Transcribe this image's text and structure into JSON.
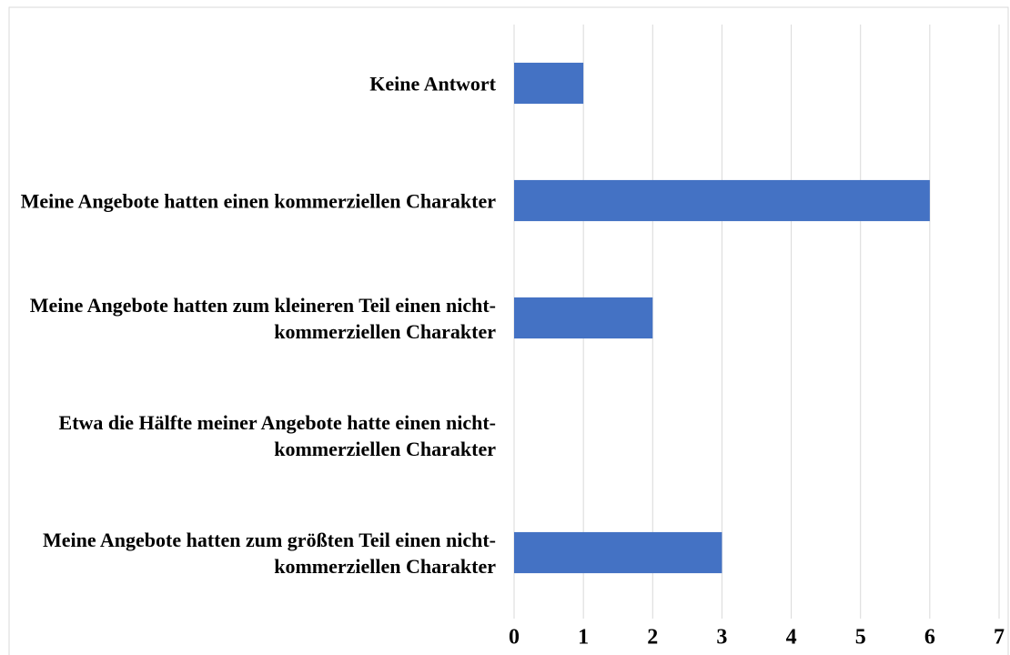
{
  "chart_data": {
    "type": "bar",
    "orientation": "horizontal",
    "categories": [
      "Keine Antwort",
      "Meine Angebote hatten einen kommerziellen Charakter",
      "Meine Angebote hatten zum kleineren Teil einen nicht-kommerziellen Charakter",
      "Etwa die Hälfte meiner Angebote hatte einen nicht-kommerziellen Charakter",
      "Meine Angebote hatten zum größten Teil einen nicht-kommerziellen Charakter"
    ],
    "values": [
      1,
      6,
      2,
      0,
      3
    ],
    "color": "#4472c4",
    "xlim": [
      0,
      7
    ],
    "xticks": [
      0,
      1,
      2,
      3,
      4,
      5,
      6,
      7
    ],
    "grid": true
  }
}
